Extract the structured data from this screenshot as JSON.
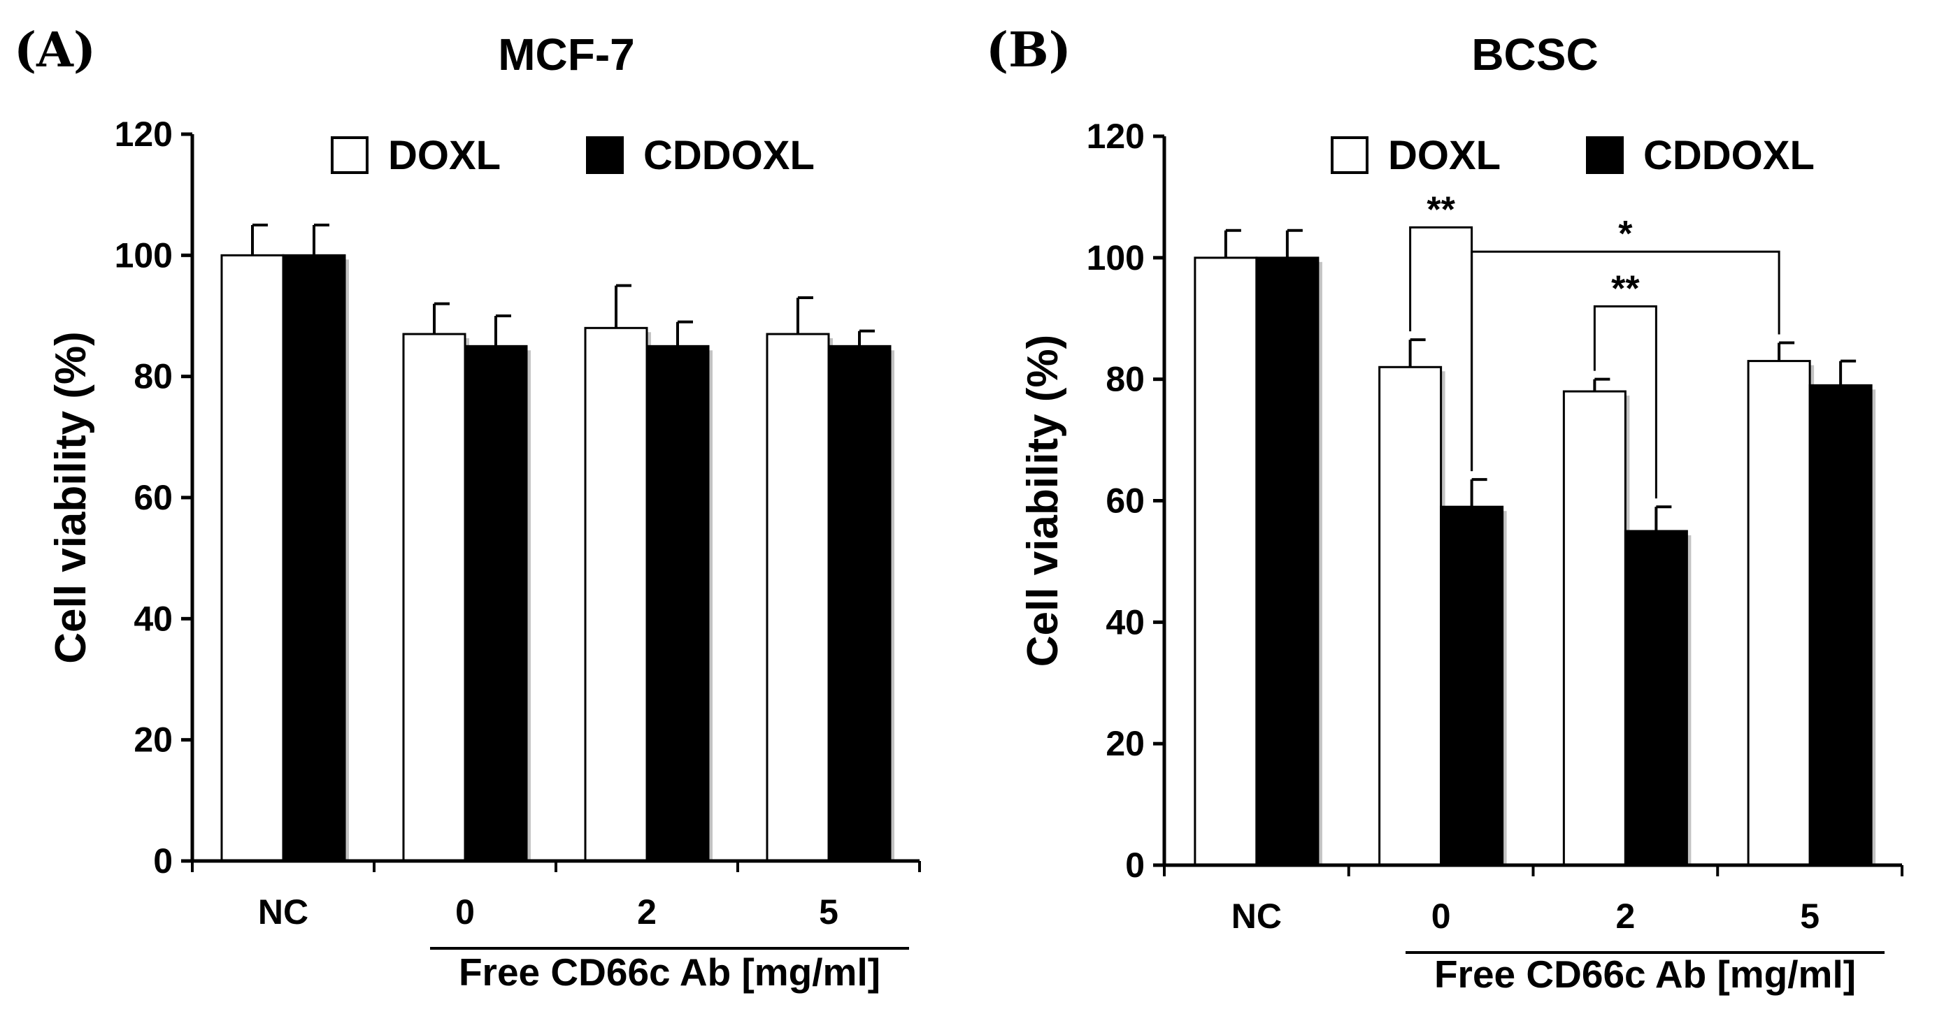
{
  "chart_data": [
    {
      "panel": "(A)",
      "type": "bar",
      "title": "MCF-7",
      "ylabel": "Cell viability (%)",
      "xlabel": "",
      "ylim": [
        0,
        120
      ],
      "yticks": [
        "0",
        "20",
        "40",
        "60",
        "80",
        "100",
        "120"
      ],
      "categories": [
        "NC",
        "0",
        "2",
        "5"
      ],
      "group_label": "Free CD66c Ab [mg/ml]",
      "series": [
        {
          "name": "DOXL",
          "fill": "#ffffff",
          "values": [
            100,
            87,
            88,
            87
          ],
          "errors": [
            5,
            5,
            7,
            6
          ]
        },
        {
          "name": "CDDOXL",
          "fill": "#000000",
          "values": [
            100,
            85,
            85,
            85
          ],
          "errors": [
            5,
            5,
            4,
            2.5
          ]
        }
      ],
      "significance": []
    },
    {
      "panel": "(B)",
      "type": "bar",
      "title": "BCSC",
      "ylabel": "Cell viability (%)",
      "xlabel": "",
      "ylim": [
        0,
        120
      ],
      "yticks": [
        "0",
        "20",
        "40",
        "60",
        "80",
        "100",
        "120"
      ],
      "categories": [
        "NC",
        "0",
        "2",
        "5"
      ],
      "group_label": "Free CD66c Ab [mg/ml]",
      "series": [
        {
          "name": "DOXL",
          "fill": "#ffffff",
          "values": [
            100,
            82,
            78,
            83
          ],
          "errors": [
            4.5,
            4.5,
            2,
            3
          ]
        },
        {
          "name": "CDDOXL",
          "fill": "#000000",
          "values": [
            100,
            59,
            55,
            79
          ],
          "errors": [
            4.5,
            4.5,
            4,
            4
          ]
        }
      ],
      "significance": [
        {
          "label": "**",
          "from": {
            "category": 1,
            "series": 0
          },
          "to": {
            "category": 1,
            "series": 1
          },
          "level": 105
        },
        {
          "label": "**",
          "from": {
            "category": 2,
            "series": 0
          },
          "to": {
            "category": 2,
            "series": 1
          },
          "level": 92
        },
        {
          "label": "*",
          "from": {
            "category": 1,
            "series": 1
          },
          "to": {
            "category": 3,
            "series": 0
          },
          "level": 101
        }
      ]
    }
  ]
}
